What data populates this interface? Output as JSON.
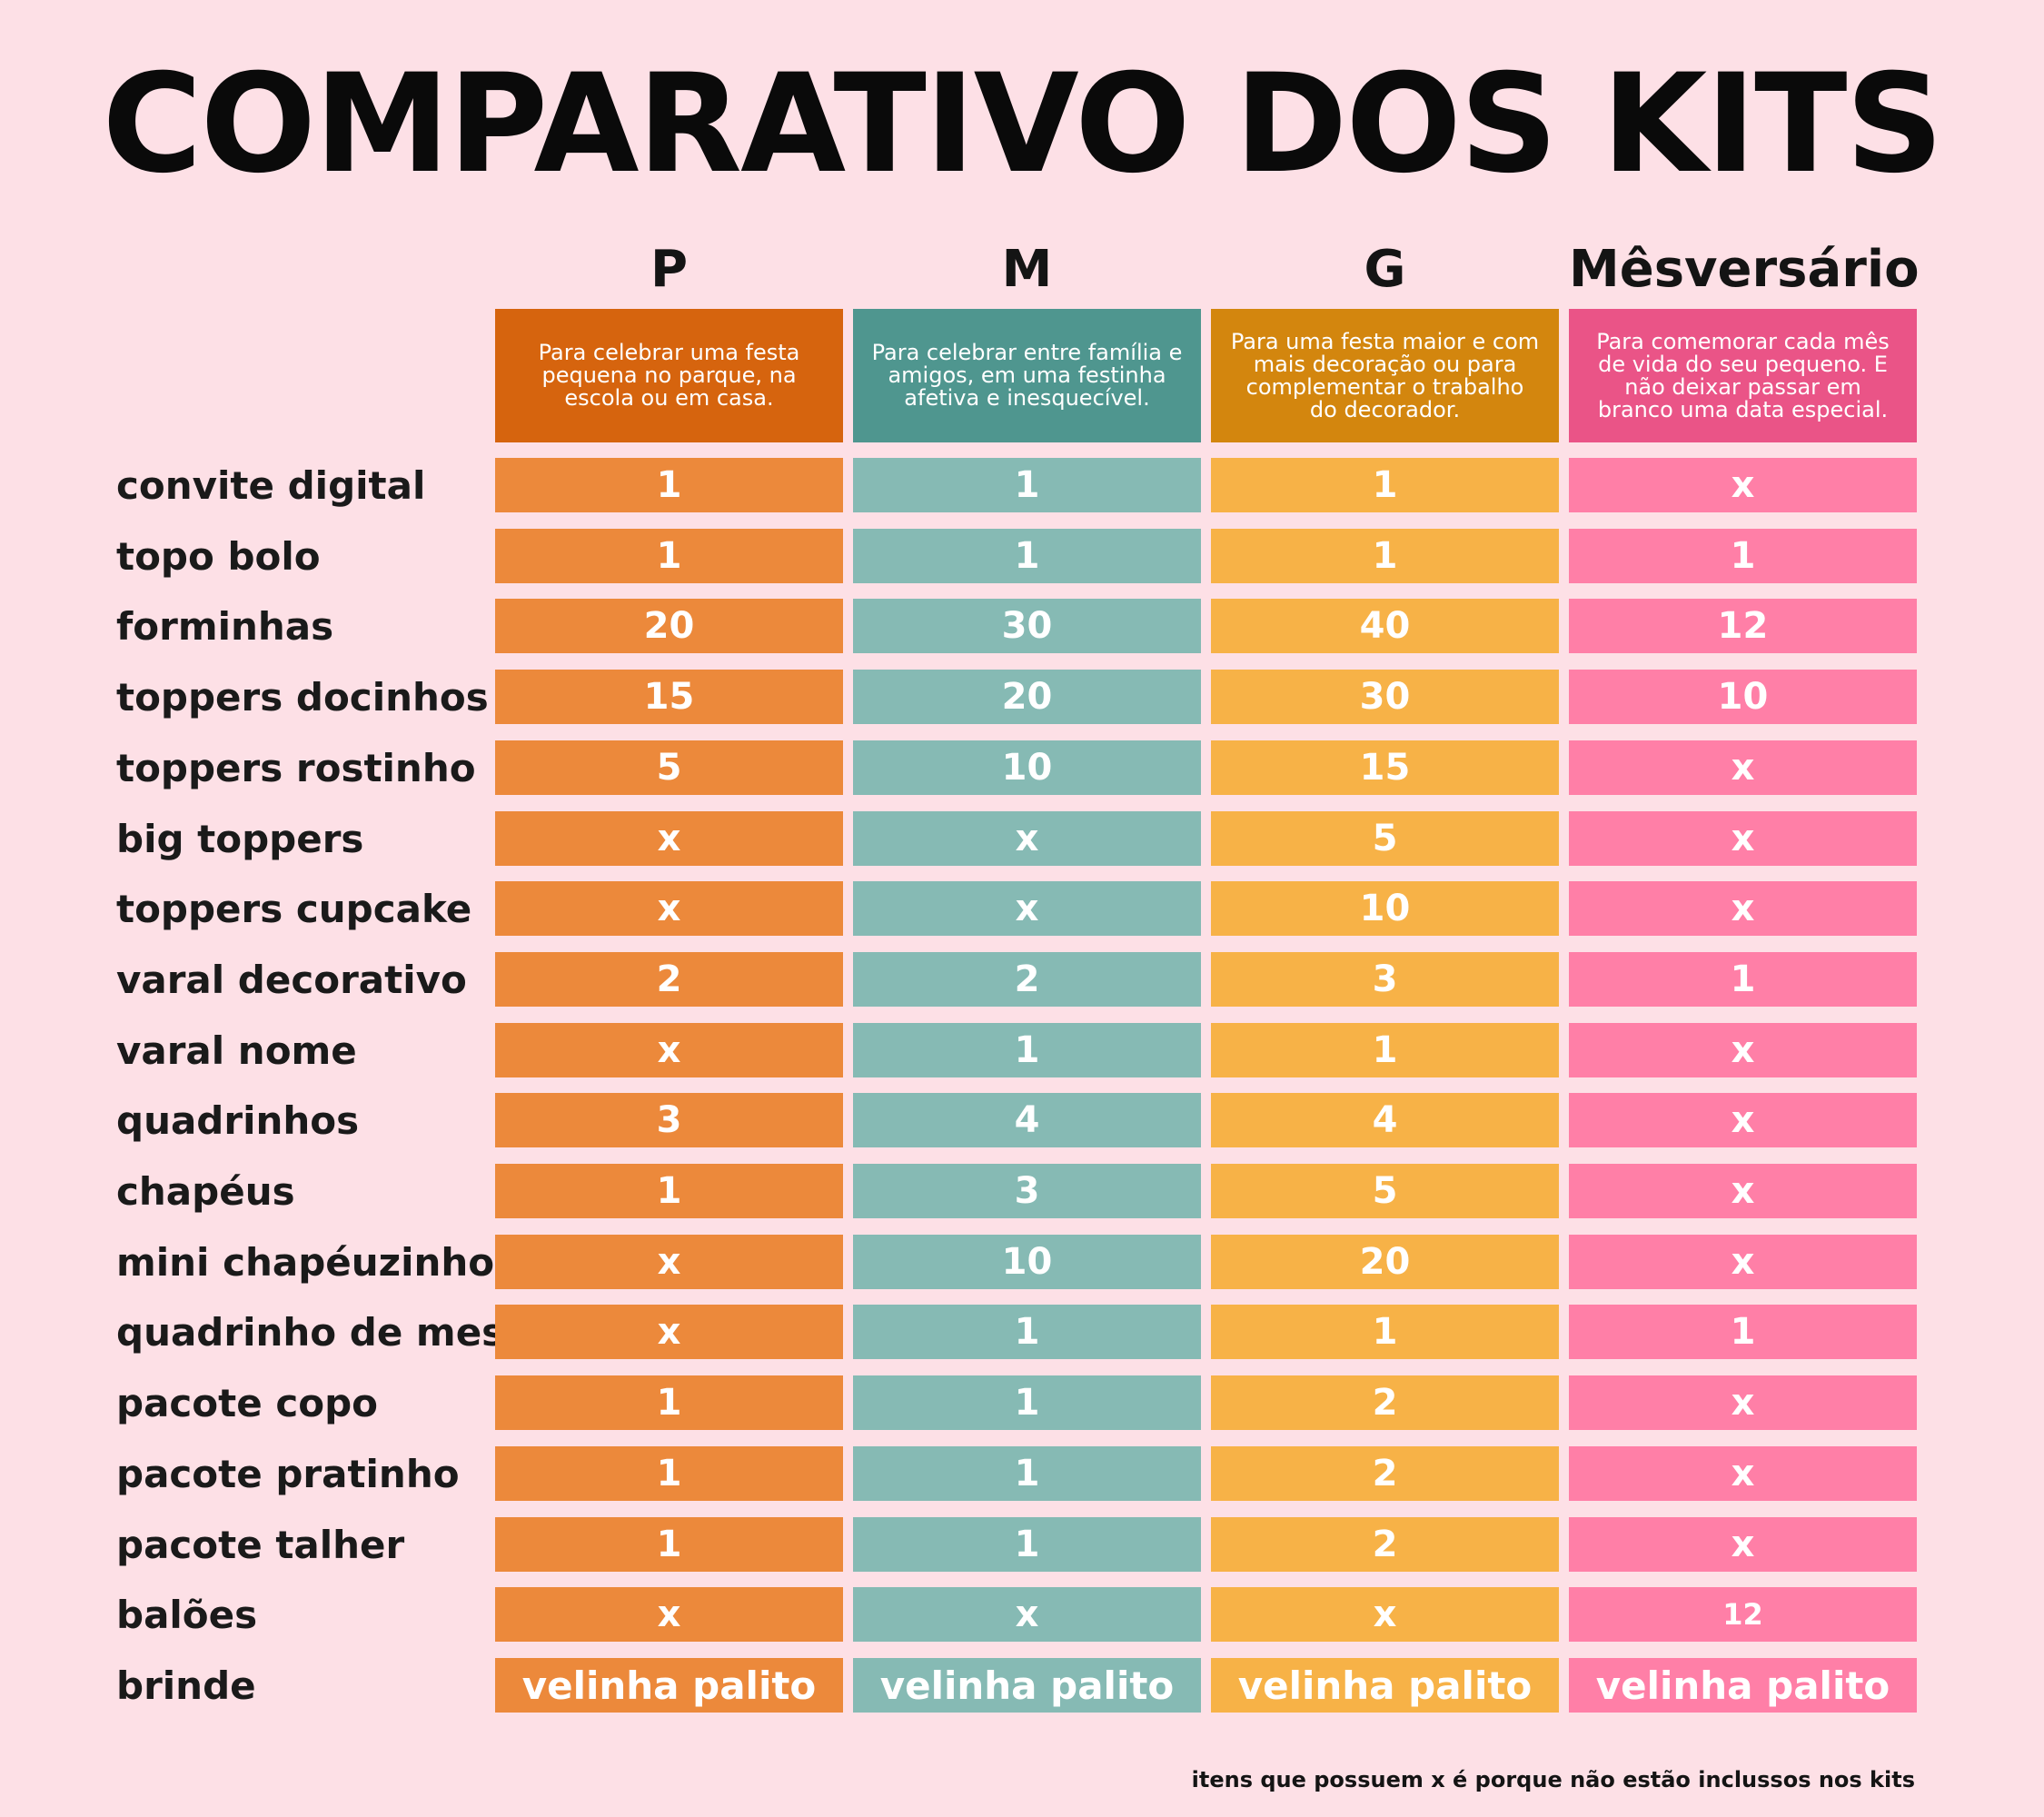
{
  "title": "COMPARATIVO DOS KITS",
  "colors": {
    "background": "#fde0e6",
    "header": [
      "#d6640e",
      "#4f968f",
      "#d3860e",
      "#ea5487"
    ],
    "cell": [
      "#ec893b",
      "#86bab4",
      "#f7b247",
      "#ff7fa7"
    ]
  },
  "columns": [
    {
      "name": "P",
      "description": "Para celebrar uma festa pequena no parque, na escola ou em casa."
    },
    {
      "name": "M",
      "description": "Para celebrar entre família e amigos, em uma festinha afetiva e inesquecível."
    },
    {
      "name": "G",
      "description": "Para uma festa maior e com mais decoração ou para complementar o trabalho do decorador."
    },
    {
      "name": "Mêsversário",
      "description": "Para comemorar cada mês de vida do seu pequeno. E não deixar passar em branco uma data especial."
    }
  ],
  "rows": [
    {
      "label": "convite digital",
      "values": [
        "1",
        "1",
        "1",
        "x"
      ]
    },
    {
      "label": "topo bolo",
      "values": [
        "1",
        "1",
        "1",
        "1"
      ]
    },
    {
      "label": "forminhas",
      "values": [
        "20",
        "30",
        "40",
        "12"
      ]
    },
    {
      "label": "toppers docinhos",
      "values": [
        "15",
        "20",
        "30",
        "10"
      ]
    },
    {
      "label": "toppers rostinho",
      "values": [
        "5",
        "10",
        "15",
        "x"
      ]
    },
    {
      "label": "big toppers",
      "values": [
        "x",
        "x",
        "5",
        "x"
      ]
    },
    {
      "label": "toppers cupcake",
      "values": [
        "x",
        "x",
        "10",
        "x"
      ]
    },
    {
      "label": "varal decorativo",
      "values": [
        "2",
        "2",
        "3",
        "1"
      ]
    },
    {
      "label": "varal nome",
      "values": [
        "x",
        "1",
        "1",
        "x"
      ]
    },
    {
      "label": "quadrinhos",
      "values": [
        "3",
        "4",
        "4",
        "x"
      ]
    },
    {
      "label": "chapéus",
      "values": [
        "1",
        "3",
        "5",
        "x"
      ]
    },
    {
      "label": "mini chapéuzinho",
      "values": [
        "x",
        "10",
        "20",
        "x"
      ]
    },
    {
      "label": "quadrinho de mesa",
      "values": [
        "x",
        "1",
        "1",
        "1"
      ]
    },
    {
      "label": "pacote copo",
      "values": [
        "1",
        "1",
        "2",
        "x"
      ]
    },
    {
      "label": "pacote pratinho",
      "values": [
        "1",
        "1",
        "2",
        "x"
      ]
    },
    {
      "label": "pacote talher",
      "values": [
        "1",
        "1",
        "2",
        "x"
      ]
    },
    {
      "label": "balões",
      "values": [
        "x",
        "x",
        "x",
        "12"
      ]
    },
    {
      "label": "brinde",
      "values": [
        "velinha palito",
        "velinha palito",
        "velinha palito",
        "velinha palito"
      ]
    }
  ],
  "footnote": "itens que possuem x é porque não estão inclussos nos kits"
}
